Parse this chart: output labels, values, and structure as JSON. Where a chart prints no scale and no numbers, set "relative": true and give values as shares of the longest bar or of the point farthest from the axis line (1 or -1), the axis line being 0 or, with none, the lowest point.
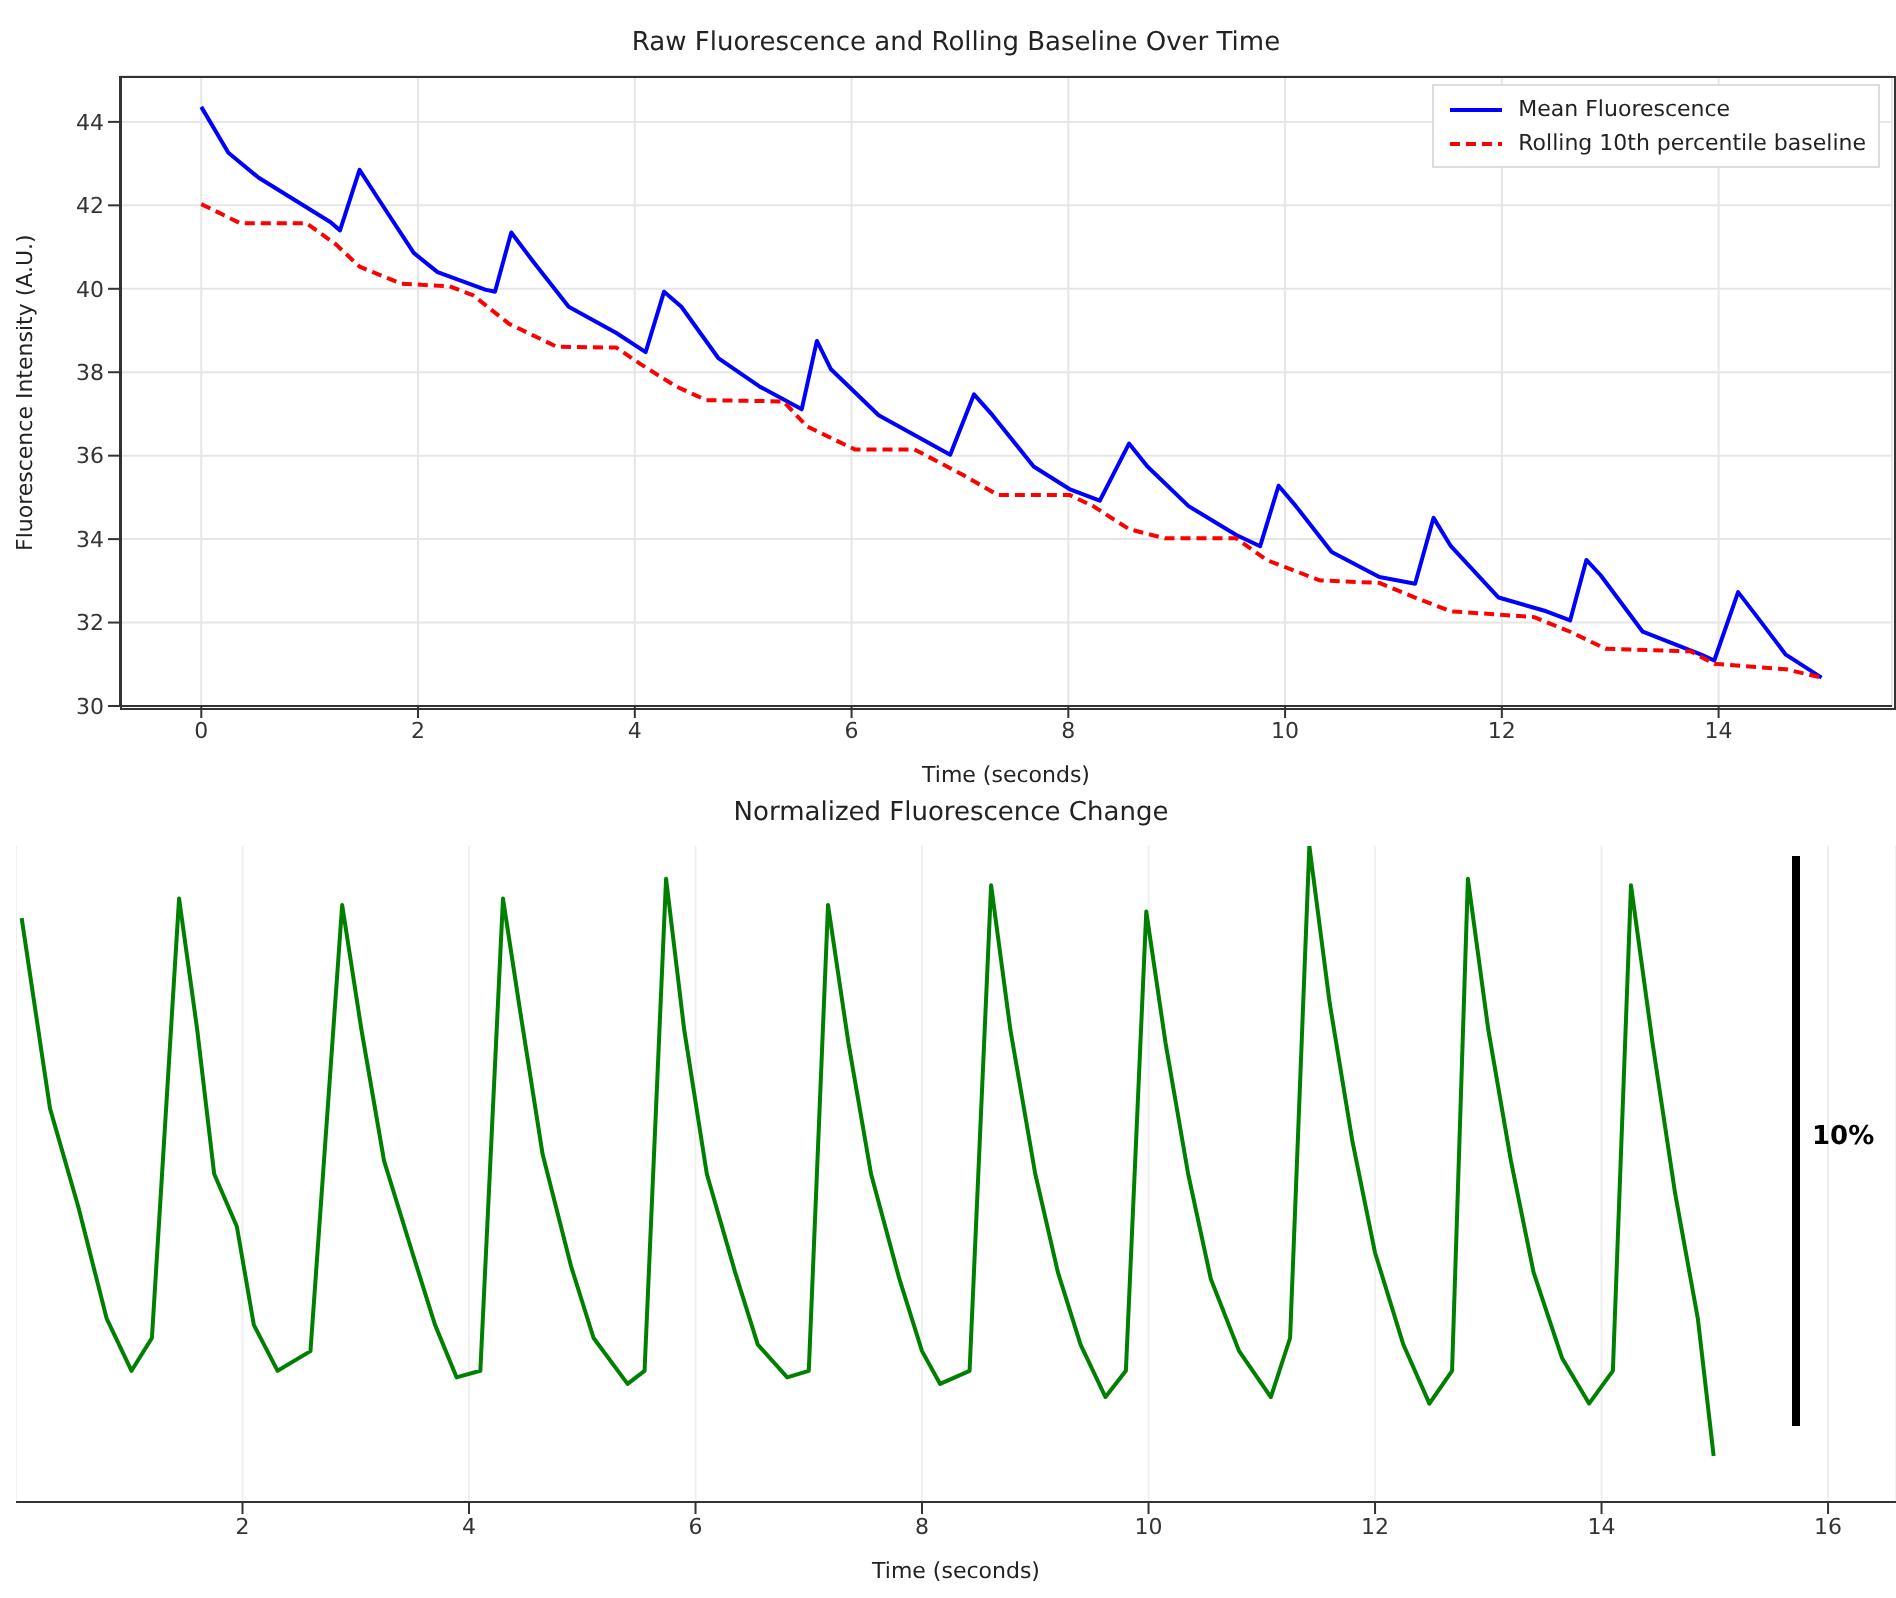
{
  "chart_data": [
    {
      "type": "line",
      "title": "Raw Fluorescence and Rolling Baseline Over Time",
      "xlabel": "Time (seconds)",
      "ylabel": "Fluorescence Intensity (A.U.)",
      "xlim": [
        -0.75,
        15.6
      ],
      "ylim": [
        30,
        45.1
      ],
      "xticks": [
        0,
        2,
        4,
        6,
        8,
        10,
        12,
        14
      ],
      "yticks": [
        30,
        32,
        34,
        36,
        38,
        40,
        42,
        44
      ],
      "grid": true,
      "legend": "top right",
      "series": [
        {
          "name": "Mean Fluorescence",
          "color": "#0000ff",
          "line_style": "solid",
          "x": [
            0,
            0.25,
            0.53,
            1.19,
            1.28,
            1.46,
            1.63,
            1.96,
            2.18,
            2.62,
            2.71,
            2.86,
            3.06,
            3.39,
            3.83,
            4.1,
            4.27,
            4.43,
            4.77,
            5.15,
            5.54,
            5.68,
            5.81,
            6.25,
            6.91,
            7.13,
            7.3,
            7.68,
            8.01,
            8.29,
            8.56,
            8.73,
            9.11,
            9.55,
            9.77,
            9.94,
            10.1,
            10.43,
            10.87,
            11.2,
            11.37,
            11.53,
            11.97,
            12.41,
            12.63,
            12.78,
            12.91,
            13.3,
            13.84,
            13.96,
            14.18,
            14.34,
            14.62,
            14.95
          ],
          "values": [
            44.36,
            43.26,
            42.66,
            41.6,
            41.4,
            42.85,
            42.17,
            40.86,
            40.4,
            39.98,
            39.93,
            41.35,
            40.66,
            39.57,
            38.94,
            38.48,
            39.93,
            39.57,
            38.34,
            37.66,
            37.11,
            38.75,
            38.07,
            36.97,
            36.02,
            37.47,
            36.97,
            35.74,
            35.2,
            34.92,
            36.29,
            35.74,
            34.79,
            34.1,
            33.83,
            35.28,
            34.79,
            33.69,
            33.09,
            32.93,
            34.51,
            33.83,
            32.6,
            32.27,
            32.05,
            33.5,
            33.14,
            31.78,
            31.23,
            31.09,
            32.73,
            32.19,
            31.23,
            30.68
          ]
        },
        {
          "name": "Rolling 10th percentile baseline",
          "color": "#ff0000",
          "line_style": "dashed",
          "x": [
            0,
            0.36,
            0.97,
            1.24,
            1.46,
            1.85,
            2.29,
            2.51,
            2.84,
            3.28,
            3.83,
            4.05,
            4.38,
            4.66,
            5.37,
            5.59,
            6.03,
            6.58,
            7.02,
            7.35,
            8.01,
            8.23,
            8.56,
            8.89,
            9.55,
            9.83,
            10.32,
            10.87,
            11.2,
            11.53,
            12.3,
            12.63,
            12.96,
            13.74,
            13.96,
            14.62,
            14.95
          ],
          "values": [
            42.03,
            41.57,
            41.57,
            41.07,
            40.53,
            40.12,
            40.06,
            39.84,
            39.16,
            38.61,
            38.59,
            38.2,
            37.66,
            37.33,
            37.3,
            36.7,
            36.15,
            36.15,
            35.55,
            35.06,
            35.06,
            34.79,
            34.24,
            34.02,
            34.02,
            33.5,
            33.01,
            32.95,
            32.6,
            32.27,
            32.13,
            31.78,
            31.37,
            31.31,
            31.01,
            30.88,
            30.68
          ]
        }
      ]
    },
    {
      "type": "line",
      "title": "Normalized Fluorescence Change",
      "xlabel": "Time (seconds)",
      "xlim": [
        0,
        16.6
      ],
      "xticks": [
        2,
        4,
        6,
        8,
        10,
        12,
        14,
        16
      ],
      "relative": true,
      "tick_labels": "x",
      "grid": "x",
      "annotations": [
        "10%"
      ],
      "series": [
        {
          "color": "#008000",
          "line_style": "solid",
          "x": [
            0.05,
            0.3,
            0.55,
            0.8,
            1.02,
            1.2,
            1.44,
            1.6,
            1.75,
            1.95,
            2.1,
            2.31,
            2.6,
            2.88,
            3.05,
            3.25,
            3.5,
            3.7,
            3.89,
            4.1,
            4.3,
            4.45,
            4.65,
            4.9,
            5.1,
            5.4,
            5.55,
            5.74,
            5.9,
            6.1,
            6.35,
            6.55,
            6.81,
            7.0,
            7.17,
            7.35,
            7.55,
            7.8,
            8.0,
            8.16,
            8.42,
            8.61,
            8.78,
            9.0,
            9.2,
            9.4,
            9.62,
            9.8,
            9.98,
            10.15,
            10.35,
            10.55,
            10.8,
            11.08,
            11.25,
            11.42,
            11.6,
            11.8,
            12.0,
            12.25,
            12.48,
            12.68,
            12.82,
            13.0,
            13.2,
            13.4,
            13.65,
            13.89,
            14.1,
            14.26,
            14.45,
            14.65,
            14.85,
            14.99
          ],
          "values": [
            0.89,
            0.6,
            0.45,
            0.28,
            0.2,
            0.25,
            0.92,
            0.72,
            0.5,
            0.42,
            0.27,
            0.2,
            0.23,
            0.91,
            0.72,
            0.52,
            0.38,
            0.27,
            0.19,
            0.2,
            0.92,
            0.75,
            0.53,
            0.36,
            0.25,
            0.18,
            0.2,
            0.95,
            0.72,
            0.5,
            0.35,
            0.24,
            0.19,
            0.2,
            0.91,
            0.7,
            0.5,
            0.34,
            0.23,
            0.18,
            0.2,
            0.94,
            0.72,
            0.5,
            0.35,
            0.24,
            0.16,
            0.2,
            0.9,
            0.7,
            0.5,
            0.34,
            0.23,
            0.16,
            0.25,
            1.0,
            0.76,
            0.55,
            0.38,
            0.24,
            0.15,
            0.2,
            0.95,
            0.72,
            0.52,
            0.35,
            0.22,
            0.15,
            0.2,
            0.94,
            0.7,
            0.47,
            0.28,
            0.07
          ]
        }
      ]
    }
  ]
}
